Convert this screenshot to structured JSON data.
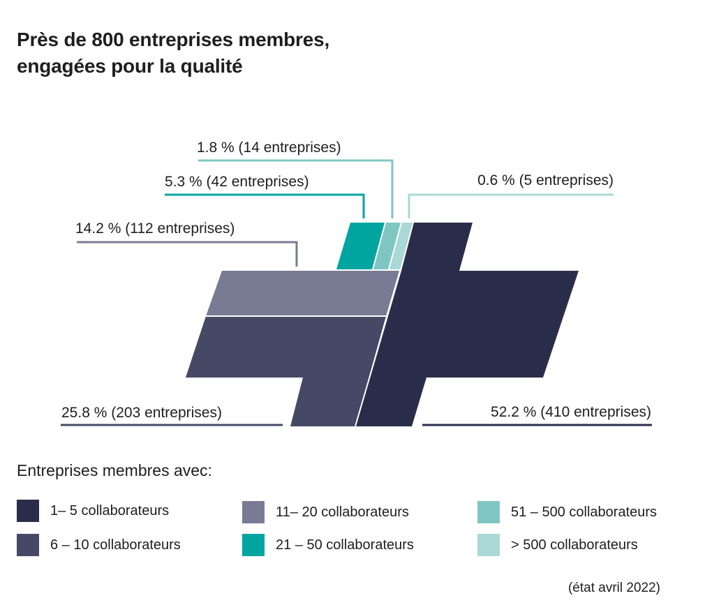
{
  "title": {
    "line1": "Près de 800 entreprises membres,",
    "line2": "engagées pour la qualité"
  },
  "chart_data": {
    "type": "pie",
    "unit": "%",
    "categories": [
      "1– 5 collaborateurs",
      "6 – 10 collaborateurs",
      "11– 20 collaborateurs",
      "21 – 50 collaborateurs",
      "51 – 500 collaborateurs",
      "> 500 collaborateurs"
    ],
    "values": [
      52.2,
      25.8,
      14.2,
      5.3,
      1.8,
      0.6
    ],
    "counts": [
      410,
      203,
      112,
      42,
      14,
      5
    ],
    "colors": [
      "#2a2d4a",
      "#464965",
      "#797b94",
      "#00a5a0",
      "#7fc6c3",
      "#a9d8d6"
    ],
    "labels": [
      "52.2 % (410 entreprises)",
      "25.8 % (203 entreprises)",
      "14.2 % (112 entreprises)",
      "5.3 % (42 entreprises)",
      "1.8 % (14 entreprises)",
      "0.6 % (5 entreprises)"
    ]
  },
  "legend": {
    "title": "Entreprises membres avec:",
    "items": [
      {
        "label": "1– 5 collaborateurs",
        "color": "#2a2d4a"
      },
      {
        "label": "6 – 10 collaborateurs",
        "color": "#464965"
      },
      {
        "label": "11– 20 collaborateurs",
        "color": "#797b94"
      },
      {
        "label": "21 – 50 collaborateurs",
        "color": "#00a5a0"
      },
      {
        "label": "51 – 500 collaborateurs",
        "color": "#7fc6c3"
      },
      {
        "label": "> 500 collaborateurs",
        "color": "#a9d8d6"
      }
    ]
  },
  "footnote": "(état avril 2022)"
}
